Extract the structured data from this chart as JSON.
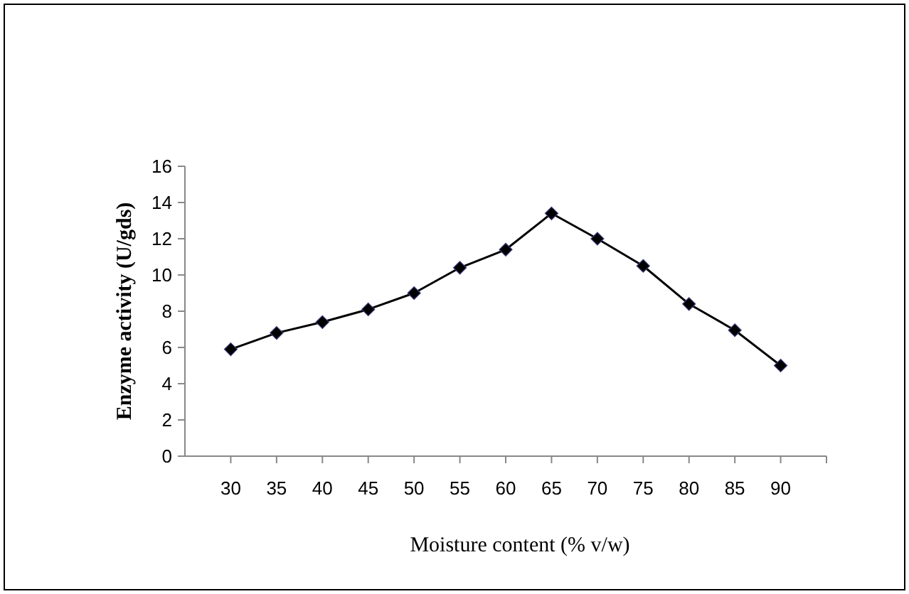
{
  "chart_data": {
    "type": "line",
    "xlabel": "Moisture content (% v/w)",
    "ylabel": "Enzyme activity (U/gds)",
    "categories": [
      "30",
      "35",
      "40",
      "45",
      "50",
      "55",
      "60",
      "65",
      "70",
      "75",
      "80",
      "85",
      "90"
    ],
    "series": [
      {
        "color": "#000000",
        "values": [
          5.9,
          6.8,
          7.4,
          8.1,
          9.0,
          10.4,
          11.4,
          13.4,
          12.0,
          10.5,
          8.4,
          6.95,
          5.0
        ]
      }
    ],
    "ylim": [
      0,
      16
    ],
    "yticks": [
      0,
      2,
      4,
      6,
      8,
      10,
      12,
      14,
      16
    ],
    "marker": "diamond",
    "line_style": "solid"
  }
}
